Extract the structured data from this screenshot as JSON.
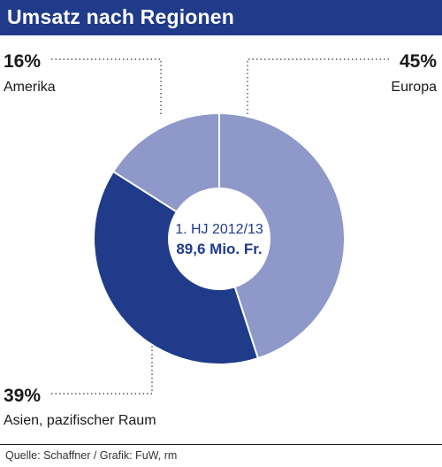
{
  "title": "Umsatz nach Regionen",
  "source": "Quelle: Schaffner / Grafik: FuW, rm",
  "center_label": {
    "line1": "1. HJ 2012/13",
    "line2": "89,6 Mio. Fr."
  },
  "colors": {
    "title_bg": "#1f3b8a",
    "europa": "#8e98c9",
    "asien": "#1f3b8a",
    "amerika": "#8e98c9",
    "center_text": "#1f3b8a"
  },
  "chart_data": {
    "type": "pie",
    "style": "donut",
    "title": "Umsatz nach Regionen",
    "center_text": [
      "1. HJ 2012/13",
      "89,6 Mio. Fr."
    ],
    "slices": [
      {
        "label": "Europa",
        "value": 45,
        "value_label": "45%"
      },
      {
        "label": "Asien, pazifischer Raum",
        "value": 39,
        "value_label": "39%"
      },
      {
        "label": "Amerika",
        "value": 16,
        "value_label": "16%"
      }
    ]
  }
}
